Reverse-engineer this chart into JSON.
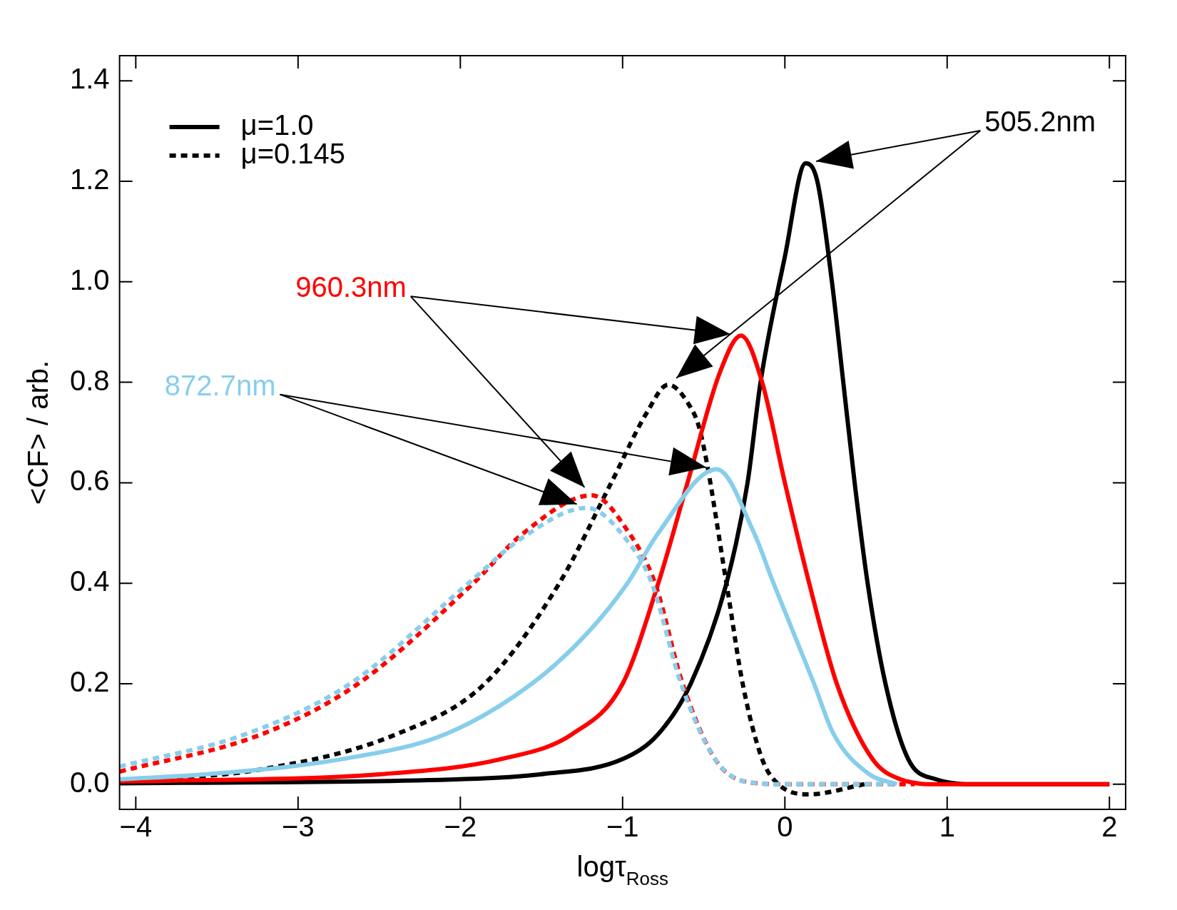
{
  "chart_data": {
    "type": "line",
    "xlabel": "logτ$_{Ross}$",
    "ylabel": "<CF> / arb.",
    "xlim": [
      -4.1,
      2.1
    ],
    "ylim": [
      -0.05,
      1.45
    ],
    "xticks": [
      -4,
      -3,
      -2,
      -1,
      0,
      1,
      2
    ],
    "yticks": [
      {
        "value": 0,
        "label": "0.0"
      },
      0.2,
      0.4,
      0.6,
      0.8,
      {
        "value": 1,
        "label": "1.0"
      },
      1.2,
      1.4
    ],
    "marker": "none",
    "legend": "top left",
    "series": [
      {
        "name": "μ=1.0",
        "color": "#000000",
        "line_style": "solid",
        "x": [
          -4.1,
          -2,
          -1.5,
          -1,
          -0.78,
          -0.58,
          -0.36,
          -0.23,
          -0.15,
          0,
          0.128,
          0.2,
          0.29,
          0.36,
          0.43,
          0.51,
          0.62,
          0.76,
          0.93,
          1.2,
          2
        ],
        "values": [
          0.002,
          0.01,
          0.02,
          0.05,
          0.1,
          0.2,
          0.4,
          0.6,
          0.8,
          1.05,
          1.236,
          1.2,
          1.0,
          0.8,
          0.6,
          0.4,
          0.2,
          0.05,
          0.01,
          0,
          0
        ]
      },
      {
        "name": "μ=0.145",
        "color": "#000000",
        "line_style": "dotted",
        "x": [
          -4.1,
          -3.22,
          -2.39,
          -1.85,
          -1.39,
          -1.07,
          -0.85,
          -0.72,
          -0.6,
          -0.52,
          -0.36,
          -0.26,
          -0.14,
          -0.04,
          0.15,
          0.49
        ],
        "values": [
          0.005,
          0.03,
          0.1,
          0.2,
          0.4,
          0.6,
          0.74,
          0.795,
          0.76,
          0.7,
          0.4,
          0.2,
          0.05,
          0,
          -0.02,
          0
        ]
      },
      {
        "color": "#ff0000",
        "line_style": "solid",
        "x": [
          -4.1,
          -2.49,
          -1.75,
          -1.31,
          -1,
          -0.78,
          -0.6,
          -0.4,
          -0.27,
          -0.14,
          0,
          0.15,
          0.32,
          0.54,
          0.71,
          0.95,
          2
        ],
        "values": [
          0.005,
          0.02,
          0.05,
          0.1,
          0.2,
          0.4,
          0.6,
          0.82,
          0.893,
          0.8,
          0.6,
          0.4,
          0.2,
          0.05,
          0.01,
          0,
          0
        ]
      },
      {
        "color": "#ff0000",
        "line_style": "dotted",
        "x": [
          -4.1,
          -3.22,
          -2.63,
          -1.92,
          -1.61,
          -1.19,
          -0.96,
          -0.8,
          -0.63,
          -0.43,
          -0.24,
          0,
          0.5,
          0.8
        ],
        "values": [
          0.025,
          0.1,
          0.2,
          0.4,
          0.5,
          0.575,
          0.5,
          0.4,
          0.2,
          0.05,
          0.005,
          0,
          0,
          0
        ]
      },
      {
        "color": "#87ceeb",
        "line_style": "solid",
        "x": [
          -4.1,
          -3.56,
          -2.73,
          -2.09,
          -1.56,
          -1.22,
          -0.97,
          -0.78,
          -0.42,
          -0.19,
          -0.07,
          0.18,
          0.3,
          0.52,
          0.69
        ],
        "values": [
          0.01,
          0.02,
          0.05,
          0.1,
          0.2,
          0.3,
          0.4,
          0.5,
          0.627,
          0.5,
          0.4,
          0.2,
          0.1,
          0.02,
          0
        ]
      },
      {
        "color": "#87ceeb",
        "line_style": "dotted",
        "x": [
          -4.1,
          -3.32,
          -2.68,
          -1.95,
          -1.62,
          -1.22,
          -0.96,
          -0.82,
          -0.64,
          -0.43,
          -0.24,
          0,
          0.67
        ],
        "values": [
          0.035,
          0.1,
          0.2,
          0.4,
          0.49,
          0.55,
          0.48,
          0.4,
          0.2,
          0.05,
          0.005,
          0,
          0
        ]
      }
    ],
    "annotations": [
      "505.2nm",
      "960.3nm",
      "872.7nm"
    ]
  }
}
